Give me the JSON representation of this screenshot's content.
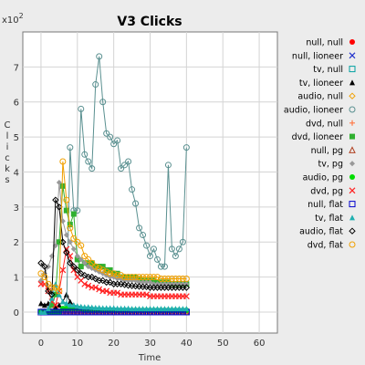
{
  "chart_data": {
    "type": "line",
    "title": "V3 Clicks",
    "xlabel": "Time",
    "ylabel": "Clicks",
    "y_multiplier": "x10",
    "y_multiplier_exp": "2",
    "xlim": [
      -5,
      65
    ],
    "ylim": [
      -0.6,
      8.0
    ],
    "xticks": [
      0,
      10,
      20,
      30,
      40,
      50,
      60
    ],
    "yticks": [
      0,
      1,
      2,
      3,
      4,
      5,
      6,
      7
    ],
    "grid": true,
    "legend_position": "right",
    "x": [
      0,
      1,
      2,
      3,
      4,
      5,
      6,
      7,
      8,
      9,
      10,
      11,
      12,
      13,
      14,
      15,
      16,
      17,
      18,
      19,
      20,
      21,
      22,
      23,
      24,
      25,
      26,
      27,
      28,
      29,
      30,
      31,
      32,
      33,
      34,
      35,
      36,
      37,
      38,
      39,
      40
    ],
    "series": [
      {
        "name": "null, null",
        "color": "#ff0000",
        "marker": "dot",
        "values": [
          0,
          0,
          0,
          0,
          0,
          0,
          0,
          0,
          0,
          0,
          0,
          0,
          0,
          0,
          0,
          0,
          0,
          0,
          0,
          0,
          0,
          0,
          0,
          0,
          0,
          0,
          0,
          0,
          0,
          0,
          0,
          0,
          0,
          0,
          0,
          0,
          0,
          0,
          0,
          0,
          0
        ]
      },
      {
        "name": "null, lioneer",
        "color": "#2233cc",
        "marker": "x",
        "values": [
          0,
          0,
          0,
          0,
          0,
          0,
          0,
          0,
          0,
          0,
          0,
          0,
          0,
          0,
          0,
          0,
          0,
          0,
          0,
          0,
          0,
          0,
          0,
          0,
          0,
          0,
          0,
          0,
          0,
          0,
          0,
          0,
          0,
          0,
          0,
          0,
          0,
          0,
          0,
          0,
          0
        ]
      },
      {
        "name": "tv, null",
        "color": "#00a0a0",
        "marker": "square",
        "values": [
          0,
          0,
          0,
          0,
          0,
          0,
          0,
          0,
          0,
          0,
          0,
          0,
          0,
          0,
          0,
          0,
          0,
          0,
          0,
          0,
          0,
          0,
          0,
          0,
          0,
          0,
          0,
          0,
          0,
          0,
          0,
          0,
          0,
          0,
          0,
          0,
          0,
          0,
          0,
          0,
          0
        ]
      },
      {
        "name": "tv, lioneer",
        "color": "#000000",
        "marker": "triangle",
        "values": [
          0.25,
          0.2,
          0.25,
          0.2,
          0.15,
          0.2,
          0.3,
          0.5,
          0.3,
          0.2,
          0.15,
          0.15,
          0.12,
          0.12,
          0.12,
          0.1,
          0.1,
          0.1,
          0.1,
          0.1,
          0.1,
          0.08,
          0.08,
          0.08,
          0.08,
          0.08,
          0.08,
          0.08,
          0.08,
          0.08,
          0.08,
          0.08,
          0.08,
          0.08,
          0.08,
          0.08,
          0.08,
          0.08,
          0.08,
          0.08,
          0.08
        ]
      },
      {
        "name": "audio, null",
        "color": "#f0a000",
        "marker": "diamond-open",
        "values": [
          0,
          0,
          0,
          0,
          0,
          0,
          0,
          0,
          0,
          0,
          0,
          0,
          0,
          0,
          0,
          0,
          0,
          0,
          0,
          0,
          0,
          0,
          0,
          0,
          0,
          0,
          0,
          0,
          0,
          0,
          0,
          0,
          0,
          0,
          0,
          0,
          0,
          0,
          0,
          0,
          0
        ]
      },
      {
        "name": "audio, lioneer",
        "color": "#5a9090",
        "marker": "circle-open",
        "values": [
          0,
          0,
          0,
          0,
          0,
          0,
          0,
          0,
          4.7,
          2.9,
          2.9,
          5.8,
          4.5,
          4.3,
          4.1,
          6.5,
          7.3,
          6.0,
          5.1,
          5.0,
          4.8,
          4.9,
          4.1,
          4.2,
          4.3,
          3.5,
          3.1,
          2.4,
          2.2,
          1.9,
          1.6,
          1.8,
          1.5,
          1.3,
          1.3,
          4.2,
          1.8,
          1.6,
          1.8,
          2.0,
          4.7
        ]
      },
      {
        "name": "dvd, null",
        "color": "#ff7744",
        "marker": "plus",
        "values": [
          0,
          0,
          0,
          0,
          0,
          0,
          0,
          0,
          0,
          0,
          0,
          0,
          0,
          0,
          0,
          0,
          0,
          0,
          0,
          0,
          0,
          0,
          0,
          0,
          0,
          0,
          0,
          0,
          0,
          0,
          0,
          0,
          0,
          0,
          0,
          0,
          0,
          0,
          0,
          0,
          0
        ]
      },
      {
        "name": "dvd, lioneer",
        "color": "#30b030",
        "marker": "square-filled",
        "values": [
          0,
          0,
          0,
          0.2,
          0.5,
          2.0,
          3.6,
          2.9,
          2.5,
          2.8,
          1.5,
          1.3,
          1.4,
          1.4,
          1.4,
          1.3,
          1.3,
          1.3,
          1.2,
          1.2,
          1.1,
          1.1,
          1.0,
          1.0,
          1.0,
          1.0,
          1.0,
          0.95,
          0.9,
          0.9,
          0.9,
          0.9,
          0.85,
          0.85,
          0.85,
          0.85,
          0.8,
          0.8,
          0.8,
          0.8,
          0.8
        ]
      },
      {
        "name": "null, pg",
        "color": "#b04020",
        "marker": "triangle-open",
        "values": [
          0,
          0,
          0,
          0,
          0,
          0,
          0,
          0,
          0,
          0,
          0,
          0,
          0,
          0,
          0,
          0,
          0,
          0,
          0,
          0,
          0,
          0,
          0,
          0,
          0,
          0,
          0,
          0,
          0,
          0,
          0,
          0,
          0,
          0,
          0,
          0,
          0,
          0,
          0,
          0,
          0
        ]
      },
      {
        "name": "tv, pg",
        "color": "#999999",
        "marker": "diamond-filled",
        "values": [
          0.9,
          1.1,
          1.3,
          1.6,
          1.9,
          3.7,
          2.6,
          2.2,
          2.0,
          1.8,
          1.6,
          1.5,
          1.4,
          1.3,
          1.25,
          1.2,
          1.15,
          1.1,
          1.05,
          1.0,
          1.0,
          0.95,
          0.95,
          0.9,
          0.9,
          0.9,
          0.9,
          0.85,
          0.85,
          0.85,
          0.85,
          0.8,
          0.8,
          0.8,
          0.8,
          0.8,
          0.8,
          0.8,
          0.8,
          0.8,
          0.8
        ]
      },
      {
        "name": "audio, pg",
        "color": "#00dd00",
        "marker": "dot",
        "values": [
          0,
          0,
          0,
          0,
          0,
          0,
          0.1,
          0.1,
          0.1,
          0.1,
          0.1,
          0.1,
          0.05,
          0.05,
          0.05,
          0.05,
          0.05,
          0.05,
          0.05,
          0.05,
          0.05,
          0.05,
          0.05,
          0.05,
          0.05,
          0.05,
          0.05,
          0.05,
          0.05,
          0.05,
          0.05,
          0.05,
          0.05,
          0.05,
          0.05,
          0.05,
          0.05,
          0.05,
          0.05,
          0.05,
          0.05
        ]
      },
      {
        "name": "dvd, pg",
        "color": "#ff2222",
        "marker": "x",
        "values": [
          0.8,
          0.8,
          0.6,
          0.3,
          0.2,
          0.6,
          1.2,
          1.8,
          1.6,
          1.2,
          1.0,
          0.9,
          0.8,
          0.75,
          0.7,
          0.7,
          0.65,
          0.6,
          0.6,
          0.55,
          0.55,
          0.55,
          0.5,
          0.5,
          0.5,
          0.5,
          0.5,
          0.5,
          0.5,
          0.5,
          0.45,
          0.45,
          0.45,
          0.45,
          0.45,
          0.45,
          0.45,
          0.45,
          0.45,
          0.45,
          0.45
        ]
      },
      {
        "name": "null, flat",
        "color": "#0000cc",
        "marker": "square-open",
        "values": [
          0,
          0,
          0,
          0,
          0,
          0,
          0,
          0,
          0,
          0,
          0,
          0,
          0,
          0,
          0,
          0,
          0,
          0,
          0,
          0,
          0,
          0,
          0,
          0,
          0,
          0,
          0,
          0,
          0,
          0,
          0,
          0,
          0,
          0,
          0,
          0,
          0,
          0,
          0,
          0,
          0
        ]
      },
      {
        "name": "tv, flat",
        "color": "#20b0b0",
        "marker": "triangle",
        "values": [
          0,
          0,
          0.1,
          0.4,
          0.8,
          0.5,
          0.3,
          0.25,
          0.2,
          0.2,
          0.18,
          0.16,
          0.15,
          0.15,
          0.14,
          0.13,
          0.13,
          0.12,
          0.12,
          0.12,
          0.12,
          0.11,
          0.11,
          0.11,
          0.11,
          0.1,
          0.1,
          0.1,
          0.1,
          0.1,
          0.1,
          0.1,
          0.1,
          0.1,
          0.1,
          0.1,
          0.1,
          0.1,
          0.1,
          0.1,
          0.1
        ]
      },
      {
        "name": "audio, flat",
        "color": "#000000",
        "marker": "diamond-open",
        "values": [
          1.4,
          1.3,
          0.6,
          0.5,
          3.2,
          3.0,
          2.0,
          1.7,
          1.4,
          1.3,
          1.2,
          1.1,
          1.05,
          1.0,
          1.0,
          0.95,
          0.9,
          0.9,
          0.85,
          0.85,
          0.8,
          0.8,
          0.8,
          0.78,
          0.76,
          0.75,
          0.74,
          0.73,
          0.72,
          0.72,
          0.7,
          0.7,
          0.7,
          0.7,
          0.7,
          0.7,
          0.7,
          0.7,
          0.7,
          0.7,
          0.7
        ]
      },
      {
        "name": "dvd, flat",
        "color": "#f0a000",
        "marker": "circle-open",
        "values": [
          1.1,
          1.0,
          0.8,
          0.7,
          0.7,
          0.6,
          4.3,
          3.2,
          2.4,
          2.1,
          2.0,
          1.9,
          1.6,
          1.5,
          1.4,
          1.3,
          1.25,
          1.2,
          1.15,
          1.1,
          1.1,
          1.05,
          1.05,
          1.0,
          1.0,
          1.0,
          1.0,
          1.0,
          1.0,
          1.0,
          1.0,
          1.0,
          1.0,
          0.95,
          0.95,
          0.95,
          0.95,
          0.95,
          0.95,
          0.95,
          0.95
        ]
      }
    ]
  }
}
